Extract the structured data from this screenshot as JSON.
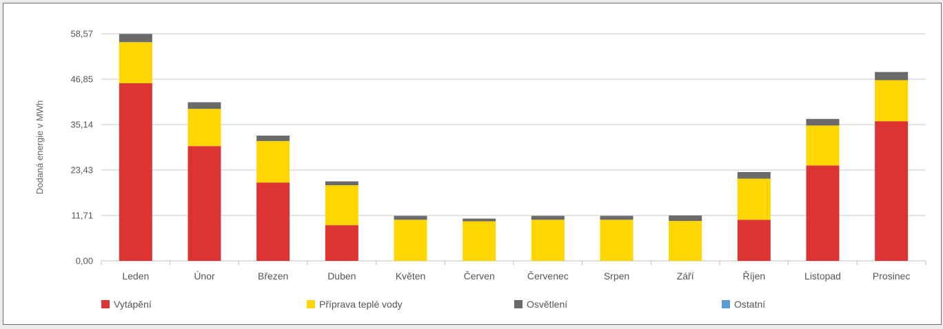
{
  "chart_data": {
    "type": "bar",
    "stacked": true,
    "title": "",
    "xlabel": "",
    "ylabel": "Dodaná energie v MWh",
    "ylim": [
      0,
      58.57
    ],
    "yticks": [
      "0,00",
      "11,71",
      "23,43",
      "35,14",
      "46,85",
      "58,57"
    ],
    "grid": true,
    "legend_position": "bottom",
    "categories": [
      "Leden",
      "Únor",
      "Březen",
      "Duben",
      "Květen",
      "Červen",
      "Červenec",
      "Srpen",
      "Září",
      "Říjen",
      "Listopad",
      "Prosinec"
    ],
    "series": [
      {
        "name": "Vytápění",
        "color": "#dd3333",
        "values": [
          45.8,
          29.6,
          20.2,
          9.2,
          0,
          0,
          0,
          0,
          0,
          10.6,
          24.6,
          36.0
        ]
      },
      {
        "name": "Příprava teplé vody",
        "color": "#ffd600",
        "values": [
          10.6,
          9.6,
          10.7,
          10.3,
          10.6,
          10.2,
          10.6,
          10.6,
          10.3,
          10.6,
          10.3,
          10.6
        ]
      },
      {
        "name": "Osvětlení",
        "color": "#6a6a6a",
        "values": [
          2.1,
          1.7,
          1.4,
          1.0,
          1.0,
          0.7,
          1.0,
          1.0,
          1.4,
          1.7,
          1.7,
          2.1
        ]
      },
      {
        "name": "Ostatní",
        "color": "#5b9bd5",
        "values": [
          0,
          0,
          0,
          0,
          0,
          0,
          0,
          0,
          0,
          0,
          0,
          0
        ]
      }
    ]
  }
}
